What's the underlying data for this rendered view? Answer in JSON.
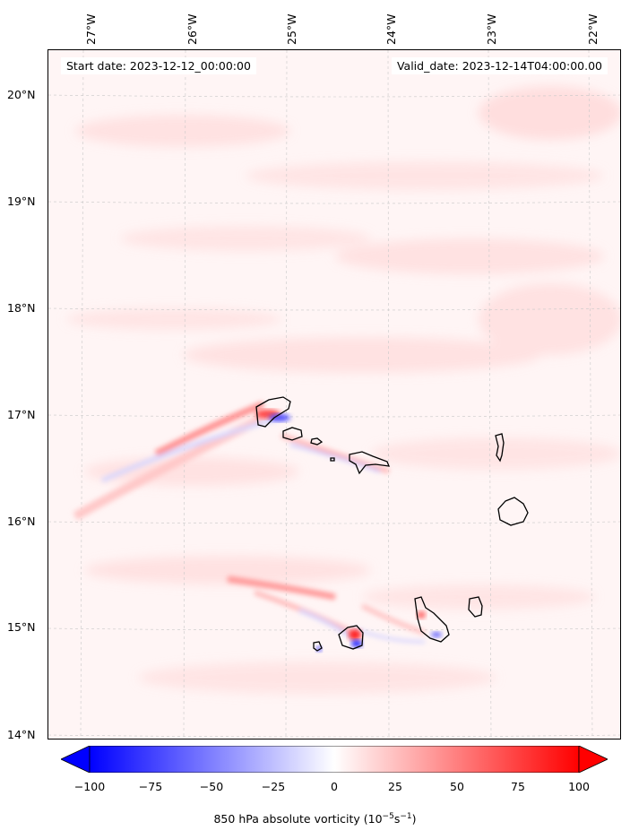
{
  "map": {
    "longitudes": [
      "27°W",
      "26°W",
      "25°W",
      "24°W",
      "23°W",
      "22°W"
    ],
    "latitudes": [
      "20°N",
      "19°N",
      "18°N",
      "17°N",
      "16°N",
      "15°N",
      "14°N"
    ],
    "start_date": "Start date: 2023-12-12_00:00:00",
    "valid_date": "Valid_date: 2023-12-14T04:00:00.00",
    "field_colors": {
      "negative": "#0000ff",
      "zero": "#ffffff",
      "positive": "#ff0000",
      "coast": "#000000"
    }
  },
  "colorbar": {
    "ticks": [
      "−100",
      "−75",
      "−50",
      "−25",
      "0",
      "25",
      "50",
      "75",
      "100"
    ],
    "title_main": "850 hPa absolute vorticity (10",
    "title_exp1": "−5",
    "title_mid": "s",
    "title_exp2": "−1",
    "title_end": ")"
  }
}
